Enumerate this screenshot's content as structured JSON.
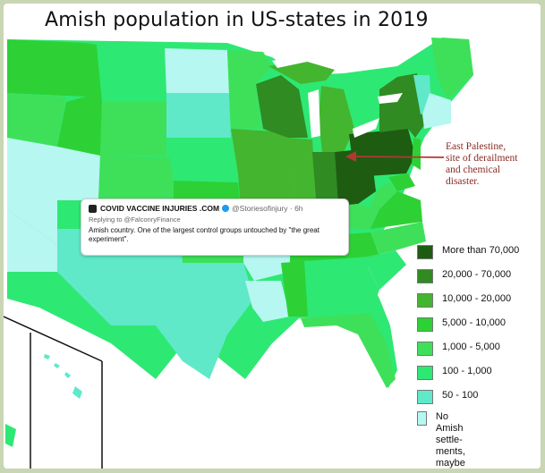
{
  "map": {
    "title": "Amish population in US-states in 2019",
    "annotation": "East Palestine,\nsite of derailment\nand chemical\ndisaster.",
    "colors": {
      "gt70000": "#1e5c12",
      "20000_70000": "#2f8b22",
      "10000_20000": "#44b52e",
      "5000_10000": "#2dd135",
      "1000_5000": "#3ee05a",
      "100_1000": "#2ee874",
      "50_100": "#5fe9c8",
      "none": "#b6f7f1"
    },
    "legend": [
      {
        "label": "More than 70,000",
        "color": "#1e5c12"
      },
      {
        "label": "20,000 - 70,000",
        "color": "#2f8b22"
      },
      {
        "label": "10,000 - 20,000",
        "color": "#44b52e"
      },
      {
        "label": "5,000 - 10,000",
        "color": "#2dd135"
      },
      {
        "label": "1,000 - 5,000",
        "color": "#3ee05a"
      },
      {
        "label": "100 - 1,000",
        "color": "#2ee874"
      },
      {
        "label": "50 - 100",
        "color": "#5fe9c8"
      },
      {
        "label": "No Amish settle-\nments, maybe\nsingle families",
        "color": "#b6f7f1"
      }
    ],
    "annotation_color": "#b03a32"
  },
  "tweet": {
    "account": "COVID VACCINE INJURIES .COM",
    "handle": "@Storiesofinjury · 6h",
    "reply_to": "Replying to @FalconryFinance",
    "text": "Amish country. One of the largest control groups untouched by \"the great experiment\"."
  }
}
